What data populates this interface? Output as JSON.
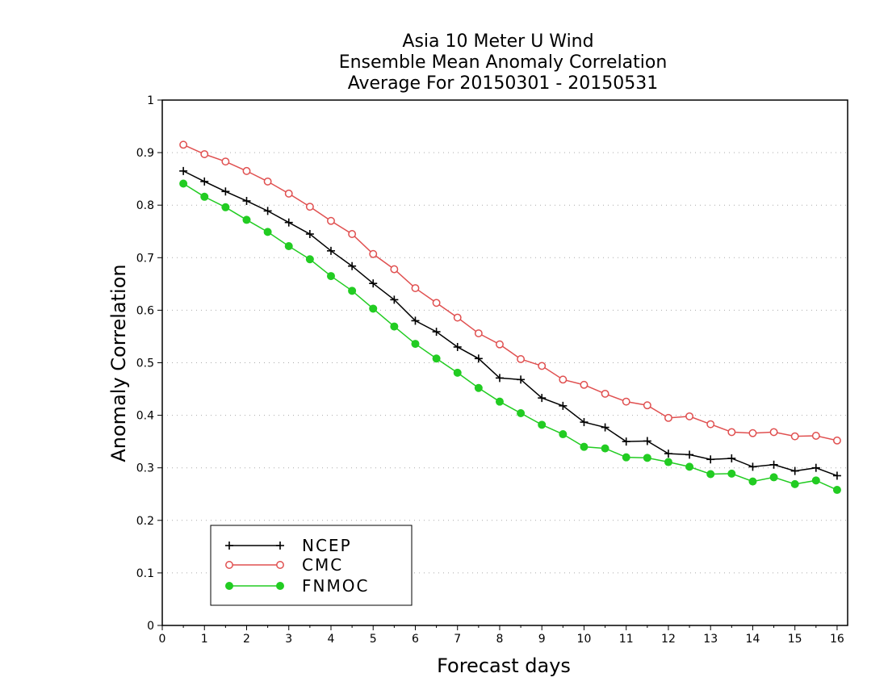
{
  "chart_data": {
    "type": "line",
    "title_lines": [
      "Asia 10 Meter U Wind",
      "Ensemble Mean Anomaly Correlation",
      "Average For 20150301 - 20150531"
    ],
    "xlabel": "Forecast days",
    "ylabel": "Anomaly Correlation",
    "xlim": [
      0,
      16.25
    ],
    "ylim": [
      0,
      1
    ],
    "x_ticks": [
      0,
      1,
      2,
      3,
      4,
      5,
      6,
      7,
      8,
      9,
      10,
      11,
      12,
      13,
      14,
      15,
      16
    ],
    "x_tick_labels": [
      "0",
      "1",
      "2",
      "3",
      "4",
      "5",
      "6",
      "7",
      "8",
      "9",
      "10",
      "11",
      "12",
      "13",
      "14",
      "15",
      "16"
    ],
    "y_ticks": [
      0,
      0.1,
      0.2,
      0.3,
      0.4,
      0.5,
      0.6,
      0.7,
      0.8,
      0.9,
      1
    ],
    "y_tick_labels": [
      "0",
      "0.1",
      "0.2",
      "0.3",
      "0.4",
      "0.5",
      "0.6",
      "0.7",
      "0.8",
      "0.9",
      "1"
    ],
    "grid": "horizontal dotted",
    "legend_position": "bottom-left",
    "x": [
      0.5,
      1,
      1.5,
      2,
      2.5,
      3,
      3.5,
      4,
      4.5,
      5,
      5.5,
      6,
      6.5,
      7,
      7.5,
      8,
      8.5,
      9,
      9.5,
      10,
      10.5,
      11,
      11.5,
      12,
      12.5,
      13,
      13.5,
      14,
      14.5,
      15,
      15.5,
      16
    ],
    "series": [
      {
        "name": "NCEP",
        "color": "#000000",
        "marker": "plus",
        "values": [
          0.865,
          0.845,
          0.826,
          0.808,
          0.789,
          0.767,
          0.745,
          0.713,
          0.684,
          0.651,
          0.62,
          0.58,
          0.559,
          0.53,
          0.508,
          0.471,
          0.468,
          0.433,
          0.418,
          0.387,
          0.377,
          0.35,
          0.351,
          0.327,
          0.325,
          0.316,
          0.318,
          0.302,
          0.306,
          0.294,
          0.3,
          0.285
        ]
      },
      {
        "name": "CMC",
        "color": "#e05050",
        "marker": "open-circle",
        "values": [
          0.915,
          0.897,
          0.883,
          0.865,
          0.845,
          0.822,
          0.797,
          0.77,
          0.745,
          0.707,
          0.678,
          0.642,
          0.614,
          0.586,
          0.556,
          0.535,
          0.507,
          0.494,
          0.468,
          0.458,
          0.441,
          0.426,
          0.419,
          0.395,
          0.398,
          0.383,
          0.368,
          0.366,
          0.368,
          0.36,
          0.361,
          0.352
        ]
      },
      {
        "name": "FNMOC",
        "color": "#22cc22",
        "marker": "filled-circle",
        "values": [
          0.841,
          0.816,
          0.796,
          0.772,
          0.749,
          0.722,
          0.697,
          0.665,
          0.637,
          0.603,
          0.569,
          0.536,
          0.508,
          0.481,
          0.452,
          0.426,
          0.404,
          0.382,
          0.364,
          0.34,
          0.337,
          0.32,
          0.319,
          0.311,
          0.302,
          0.288,
          0.289,
          0.274,
          0.282,
          0.269,
          0.276,
          0.258
        ]
      }
    ]
  }
}
